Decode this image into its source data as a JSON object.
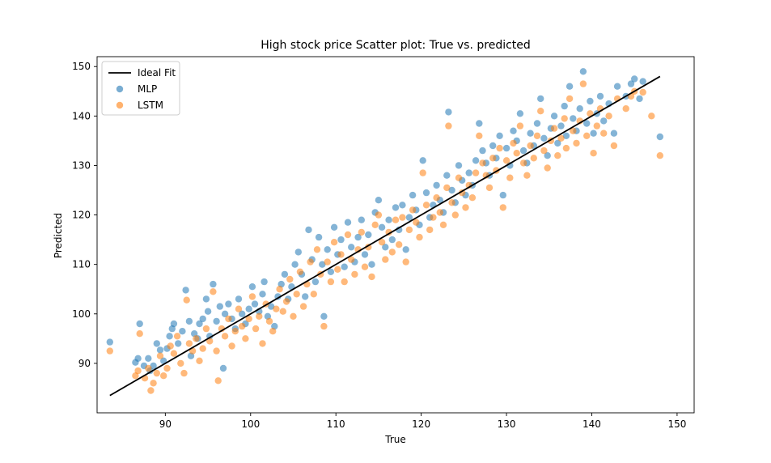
{
  "chart_data": {
    "type": "scatter",
    "title": "High stock price Scatter plot: True vs. predicted",
    "xlabel": "True",
    "ylabel": "Predicted",
    "xlim": [
      82,
      152
    ],
    "ylim": [
      80,
      152
    ],
    "xticks": [
      90,
      100,
      110,
      120,
      130,
      140,
      150
    ],
    "yticks": [
      90,
      100,
      110,
      120,
      130,
      140,
      150
    ],
    "grid": false,
    "legend_position": "top-left",
    "ideal_fit": {
      "label": "Ideal Fit",
      "color": "#000000",
      "x": [
        83.5,
        148
      ],
      "y": [
        83.5,
        148
      ]
    },
    "series": [
      {
        "name": "MLP",
        "color": "#1f77b4",
        "points": [
          [
            83.5,
            94.3
          ],
          [
            86.5,
            90.2
          ],
          [
            86.8,
            91.0
          ],
          [
            87.0,
            98.0
          ],
          [
            87.5,
            89.5
          ],
          [
            88.0,
            91.0
          ],
          [
            88.2,
            88.5
          ],
          [
            88.6,
            89.5
          ],
          [
            89.0,
            94.0
          ],
          [
            89.4,
            92.7
          ],
          [
            89.8,
            90.5
          ],
          [
            90.2,
            93.0
          ],
          [
            90.5,
            95.5
          ],
          [
            90.8,
            97.0
          ],
          [
            91.0,
            98.0
          ],
          [
            91.5,
            94.0
          ],
          [
            92.0,
            96.5
          ],
          [
            92.4,
            104.8
          ],
          [
            92.8,
            98.5
          ],
          [
            93.0,
            91.5
          ],
          [
            93.4,
            96.0
          ],
          [
            93.8,
            95.0
          ],
          [
            94.0,
            98.0
          ],
          [
            94.4,
            99.0
          ],
          [
            94.8,
            103.0
          ],
          [
            95.0,
            100.5
          ],
          [
            95.2,
            95.5
          ],
          [
            95.6,
            106.0
          ],
          [
            96.0,
            98.5
          ],
          [
            96.4,
            101.5
          ],
          [
            96.8,
            89.0
          ],
          [
            97.0,
            100.0
          ],
          [
            97.4,
            102.0
          ],
          [
            97.8,
            99.0
          ],
          [
            98.2,
            97.0
          ],
          [
            98.6,
            103.0
          ],
          [
            99.0,
            100.0
          ],
          [
            99.4,
            98.0
          ],
          [
            99.8,
            101.0
          ],
          [
            100.2,
            105.5
          ],
          [
            100.5,
            102.0
          ],
          [
            101.0,
            100.5
          ],
          [
            101.4,
            104.0
          ],
          [
            101.6,
            106.5
          ],
          [
            102.0,
            99.5
          ],
          [
            102.4,
            101.5
          ],
          [
            102.8,
            97.5
          ],
          [
            103.2,
            103.5
          ],
          [
            103.6,
            106.0
          ],
          [
            104.0,
            108.0
          ],
          [
            104.4,
            103.0
          ],
          [
            104.8,
            105.5
          ],
          [
            105.2,
            110.0
          ],
          [
            105.6,
            112.5
          ],
          [
            106.0,
            108.0
          ],
          [
            106.4,
            103.5
          ],
          [
            106.8,
            117.0
          ],
          [
            107.2,
            111.0
          ],
          [
            107.6,
            106.5
          ],
          [
            108.0,
            115.5
          ],
          [
            108.4,
            110.0
          ],
          [
            108.6,
            99.5
          ],
          [
            109.0,
            113.0
          ],
          [
            109.4,
            108.5
          ],
          [
            109.8,
            117.5
          ],
          [
            110.2,
            112.0
          ],
          [
            110.6,
            115.0
          ],
          [
            111.0,
            109.5
          ],
          [
            111.4,
            118.5
          ],
          [
            111.8,
            113.5
          ],
          [
            112.2,
            110.5
          ],
          [
            112.6,
            115.5
          ],
          [
            113.0,
            119.0
          ],
          [
            113.4,
            112.0
          ],
          [
            113.8,
            116.0
          ],
          [
            114.2,
            110.0
          ],
          [
            114.6,
            120.5
          ],
          [
            115.0,
            123.0
          ],
          [
            115.4,
            117.5
          ],
          [
            115.8,
            113.5
          ],
          [
            116.2,
            119.0
          ],
          [
            116.6,
            115.0
          ],
          [
            117.0,
            121.5
          ],
          [
            117.4,
            117.0
          ],
          [
            117.8,
            122.0
          ],
          [
            118.2,
            113.0
          ],
          [
            118.6,
            119.5
          ],
          [
            119.0,
            124.0
          ],
          [
            119.4,
            121.0
          ],
          [
            119.8,
            118.0
          ],
          [
            120.2,
            131.0
          ],
          [
            120.6,
            124.5
          ],
          [
            121.0,
            119.5
          ],
          [
            121.4,
            122.0
          ],
          [
            121.8,
            126.0
          ],
          [
            122.2,
            123.0
          ],
          [
            122.6,
            120.5
          ],
          [
            123.0,
            128.0
          ],
          [
            123.2,
            140.8
          ],
          [
            123.6,
            125.0
          ],
          [
            124.0,
            122.5
          ],
          [
            124.4,
            130.0
          ],
          [
            124.8,
            127.0
          ],
          [
            125.2,
            124.0
          ],
          [
            125.6,
            128.5
          ],
          [
            126.0,
            126.0
          ],
          [
            126.4,
            131.0
          ],
          [
            126.8,
            138.5
          ],
          [
            127.2,
            133.0
          ],
          [
            127.6,
            130.5
          ],
          [
            128.0,
            128.0
          ],
          [
            128.4,
            134.0
          ],
          [
            128.8,
            131.5
          ],
          [
            129.2,
            136.0
          ],
          [
            129.6,
            124.0
          ],
          [
            130.0,
            133.5
          ],
          [
            130.4,
            130.0
          ],
          [
            130.8,
            137.0
          ],
          [
            131.2,
            135.0
          ],
          [
            131.6,
            140.5
          ],
          [
            132.0,
            133.0
          ],
          [
            132.4,
            130.5
          ],
          [
            132.8,
            136.5
          ],
          [
            133.2,
            134.0
          ],
          [
            133.6,
            138.5
          ],
          [
            134.0,
            143.5
          ],
          [
            134.4,
            135.5
          ],
          [
            134.8,
            132.0
          ],
          [
            135.2,
            137.5
          ],
          [
            135.6,
            140.0
          ],
          [
            136.0,
            134.5
          ],
          [
            136.4,
            138.0
          ],
          [
            136.8,
            142.0
          ],
          [
            137.0,
            136.0
          ],
          [
            137.4,
            146.0
          ],
          [
            137.8,
            139.5
          ],
          [
            138.2,
            137.0
          ],
          [
            138.6,
            141.5
          ],
          [
            139.0,
            149.0
          ],
          [
            139.4,
            138.5
          ],
          [
            139.8,
            143.0
          ],
          [
            140.2,
            136.5
          ],
          [
            140.6,
            140.5
          ],
          [
            141.0,
            144.0
          ],
          [
            141.4,
            139.0
          ],
          [
            142.0,
            142.5
          ],
          [
            142.6,
            136.5
          ],
          [
            143.0,
            146.0
          ],
          [
            144.0,
            144.0
          ],
          [
            144.6,
            146.5
          ],
          [
            145.0,
            147.5
          ],
          [
            145.6,
            143.5
          ],
          [
            146.0,
            147.0
          ],
          [
            148.0,
            135.8
          ]
        ]
      },
      {
        "name": "LSTM",
        "color": "#ff7f0e",
        "points": [
          [
            83.5,
            92.5
          ],
          [
            86.5,
            87.5
          ],
          [
            86.8,
            88.5
          ],
          [
            87.0,
            96.0
          ],
          [
            87.6,
            87.0
          ],
          [
            88.0,
            89.0
          ],
          [
            88.3,
            84.5
          ],
          [
            88.6,
            86.0
          ],
          [
            89.0,
            88.0
          ],
          [
            89.4,
            91.5
          ],
          [
            89.8,
            87.5
          ],
          [
            90.2,
            89.0
          ],
          [
            90.6,
            93.5
          ],
          [
            91.0,
            92.0
          ],
          [
            91.4,
            95.5
          ],
          [
            91.8,
            90.0
          ],
          [
            92.2,
            88.0
          ],
          [
            92.5,
            102.8
          ],
          [
            92.8,
            94.0
          ],
          [
            93.2,
            92.5
          ],
          [
            93.6,
            95.0
          ],
          [
            94.0,
            90.5
          ],
          [
            94.4,
            93.0
          ],
          [
            94.8,
            97.0
          ],
          [
            95.2,
            94.5
          ],
          [
            95.6,
            104.5
          ],
          [
            96.0,
            92.5
          ],
          [
            96.2,
            86.5
          ],
          [
            96.6,
            97.0
          ],
          [
            97.0,
            95.5
          ],
          [
            97.4,
            99.0
          ],
          [
            97.8,
            93.5
          ],
          [
            98.2,
            96.5
          ],
          [
            98.6,
            101.0
          ],
          [
            99.0,
            97.5
          ],
          [
            99.4,
            95.0
          ],
          [
            99.8,
            99.0
          ],
          [
            100.2,
            103.5
          ],
          [
            100.6,
            97.0
          ],
          [
            101.0,
            99.5
          ],
          [
            101.4,
            94.0
          ],
          [
            101.8,
            102.0
          ],
          [
            102.2,
            98.5
          ],
          [
            102.6,
            96.5
          ],
          [
            103.0,
            101.0
          ],
          [
            103.4,
            105.0
          ],
          [
            103.8,
            100.5
          ],
          [
            104.2,
            102.5
          ],
          [
            104.6,
            107.0
          ],
          [
            105.0,
            99.5
          ],
          [
            105.4,
            104.0
          ],
          [
            105.8,
            108.5
          ],
          [
            106.2,
            101.5
          ],
          [
            106.6,
            106.0
          ],
          [
            107.0,
            110.5
          ],
          [
            107.4,
            104.0
          ],
          [
            107.8,
            113.0
          ],
          [
            108.2,
            108.0
          ],
          [
            108.6,
            97.5
          ],
          [
            109.0,
            110.5
          ],
          [
            109.4,
            106.5
          ],
          [
            109.8,
            114.5
          ],
          [
            110.2,
            109.0
          ],
          [
            110.6,
            112.0
          ],
          [
            111.0,
            106.5
          ],
          [
            111.4,
            116.0
          ],
          [
            111.8,
            111.0
          ],
          [
            112.2,
            108.0
          ],
          [
            112.6,
            113.0
          ],
          [
            113.0,
            116.5
          ],
          [
            113.4,
            109.5
          ],
          [
            113.8,
            113.5
          ],
          [
            114.2,
            107.5
          ],
          [
            114.6,
            118.0
          ],
          [
            115.0,
            120.0
          ],
          [
            115.4,
            114.5
          ],
          [
            115.8,
            111.0
          ],
          [
            116.2,
            116.5
          ],
          [
            116.6,
            112.5
          ],
          [
            117.0,
            119.0
          ],
          [
            117.4,
            114.0
          ],
          [
            117.8,
            119.5
          ],
          [
            118.2,
            110.5
          ],
          [
            118.6,
            117.0
          ],
          [
            119.0,
            121.0
          ],
          [
            119.4,
            118.5
          ],
          [
            119.8,
            115.5
          ],
          [
            120.2,
            128.5
          ],
          [
            120.6,
            122.0
          ],
          [
            121.0,
            117.0
          ],
          [
            121.4,
            119.5
          ],
          [
            121.8,
            123.5
          ],
          [
            122.2,
            120.5
          ],
          [
            122.6,
            118.0
          ],
          [
            123.0,
            125.5
          ],
          [
            123.2,
            138.0
          ],
          [
            123.6,
            122.5
          ],
          [
            124.0,
            120.0
          ],
          [
            124.4,
            127.5
          ],
          [
            124.8,
            124.5
          ],
          [
            125.2,
            121.5
          ],
          [
            125.6,
            126.0
          ],
          [
            126.0,
            123.5
          ],
          [
            126.4,
            128.5
          ],
          [
            126.8,
            136.0
          ],
          [
            127.2,
            130.5
          ],
          [
            127.6,
            128.0
          ],
          [
            128.0,
            125.5
          ],
          [
            128.4,
            131.5
          ],
          [
            128.8,
            129.0
          ],
          [
            129.2,
            133.5
          ],
          [
            129.6,
            121.5
          ],
          [
            130.0,
            131.0
          ],
          [
            130.4,
            127.5
          ],
          [
            130.8,
            134.5
          ],
          [
            131.2,
            132.5
          ],
          [
            131.6,
            138.0
          ],
          [
            132.0,
            130.5
          ],
          [
            132.4,
            128.0
          ],
          [
            132.8,
            134.0
          ],
          [
            133.2,
            131.5
          ],
          [
            133.6,
            136.0
          ],
          [
            134.0,
            141.0
          ],
          [
            134.4,
            133.0
          ],
          [
            134.8,
            129.5
          ],
          [
            135.2,
            135.0
          ],
          [
            135.6,
            137.5
          ],
          [
            136.0,
            132.0
          ],
          [
            136.4,
            135.5
          ],
          [
            136.8,
            139.5
          ],
          [
            137.0,
            133.5
          ],
          [
            137.4,
            143.5
          ],
          [
            137.8,
            137.0
          ],
          [
            138.2,
            134.5
          ],
          [
            138.6,
            139.0
          ],
          [
            139.0,
            146.5
          ],
          [
            139.4,
            136.0
          ],
          [
            139.8,
            140.5
          ],
          [
            140.2,
            132.5
          ],
          [
            140.6,
            138.0
          ],
          [
            141.0,
            141.5
          ],
          [
            141.4,
            136.5
          ],
          [
            142.0,
            140.0
          ],
          [
            142.6,
            134.0
          ],
          [
            143.0,
            143.5
          ],
          [
            144.0,
            141.5
          ],
          [
            144.6,
            144.0
          ],
          [
            145.0,
            145.0
          ],
          [
            146.0,
            144.8
          ],
          [
            147.0,
            140.0
          ],
          [
            148.0,
            132.0
          ]
        ]
      }
    ]
  }
}
